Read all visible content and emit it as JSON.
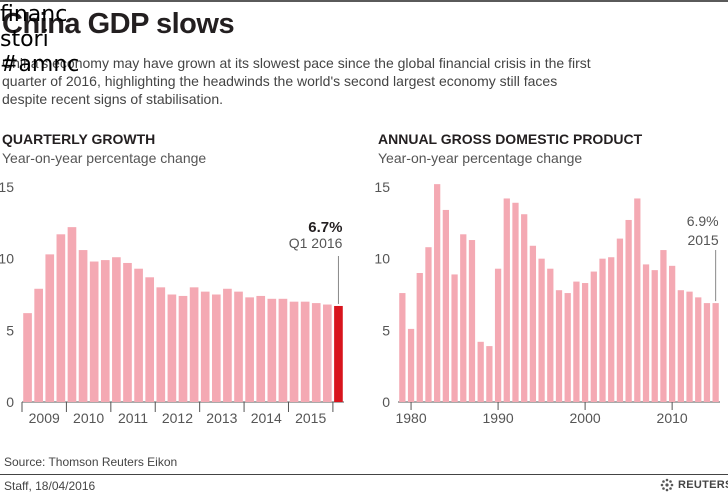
{
  "overlay_lines": [
    "financ",
    "stori",
    "#amnc"
  ],
  "title": "China GDP slows",
  "intro": "China's economy may have grown at its slowest pace since the global financial crisis in the first quarter of 2016, highlighting the headwinds the world's second largest economy still faces despite recent signs of stabilisation.",
  "colors": {
    "bar": "#f4a9b3",
    "highlight": "#d8141d",
    "text": "#231f20",
    "axis": "#555555"
  },
  "chart_data": [
    {
      "type": "bar",
      "title": "QUARTERLY GROWTH",
      "subtitle": "Year-on-year percentage change",
      "ylim": [
        0,
        15
      ],
      "yticks": [
        0,
        5,
        10,
        15
      ],
      "xtick_labels": [
        "2009",
        "2010",
        "2011",
        "2012",
        "2013",
        "2014",
        "2015"
      ],
      "values": [
        6.2,
        7.9,
        10.3,
        11.7,
        12.2,
        10.6,
        9.8,
        9.9,
        10.1,
        9.7,
        9.3,
        8.7,
        8.0,
        7.5,
        7.4,
        8.0,
        7.7,
        7.5,
        7.9,
        7.7,
        7.3,
        7.4,
        7.2,
        7.2,
        7.0,
        7.0,
        6.9,
        6.8,
        6.7
      ],
      "highlight_index": 28,
      "annotation": {
        "value": "6.7%",
        "label": "Q1 2016"
      }
    },
    {
      "type": "bar",
      "title": "ANNUAL GROSS DOMESTIC PRODUCT",
      "subtitle": "Year-on-year percentage change",
      "ylim": [
        0,
        15
      ],
      "yticks": [
        0,
        5,
        10,
        15
      ],
      "x": [
        1979,
        1980,
        1981,
        1982,
        1983,
        1984,
        1985,
        1986,
        1987,
        1988,
        1989,
        1990,
        1991,
        1992,
        1993,
        1994,
        1995,
        1996,
        1997,
        1998,
        1999,
        2000,
        2001,
        2002,
        2003,
        2004,
        2005,
        2006,
        2007,
        2008,
        2009,
        2010,
        2011,
        2012,
        2013,
        2014,
        2015
      ],
      "values": [
        7.6,
        5.1,
        9.0,
        10.8,
        15.2,
        13.4,
        8.9,
        11.7,
        11.3,
        4.2,
        3.9,
        9.3,
        14.2,
        13.9,
        13.1,
        10.9,
        10.0,
        9.3,
        7.8,
        7.6,
        8.4,
        8.3,
        9.1,
        10.0,
        10.1,
        11.4,
        12.7,
        14.2,
        9.6,
        9.2,
        10.6,
        9.5,
        7.8,
        7.7,
        7.3,
        6.9,
        6.9
      ],
      "xtick_values": [
        1980,
        1990,
        2000,
        2010
      ],
      "annotation": {
        "value": "6.9%",
        "label": "2015"
      }
    }
  ],
  "source": "Source: Thomson Reuters Eikon",
  "credit": "Staff,  18/04/2016",
  "logo": {
    "icon": "reuters-dots-icon",
    "text": "REUTERS"
  }
}
